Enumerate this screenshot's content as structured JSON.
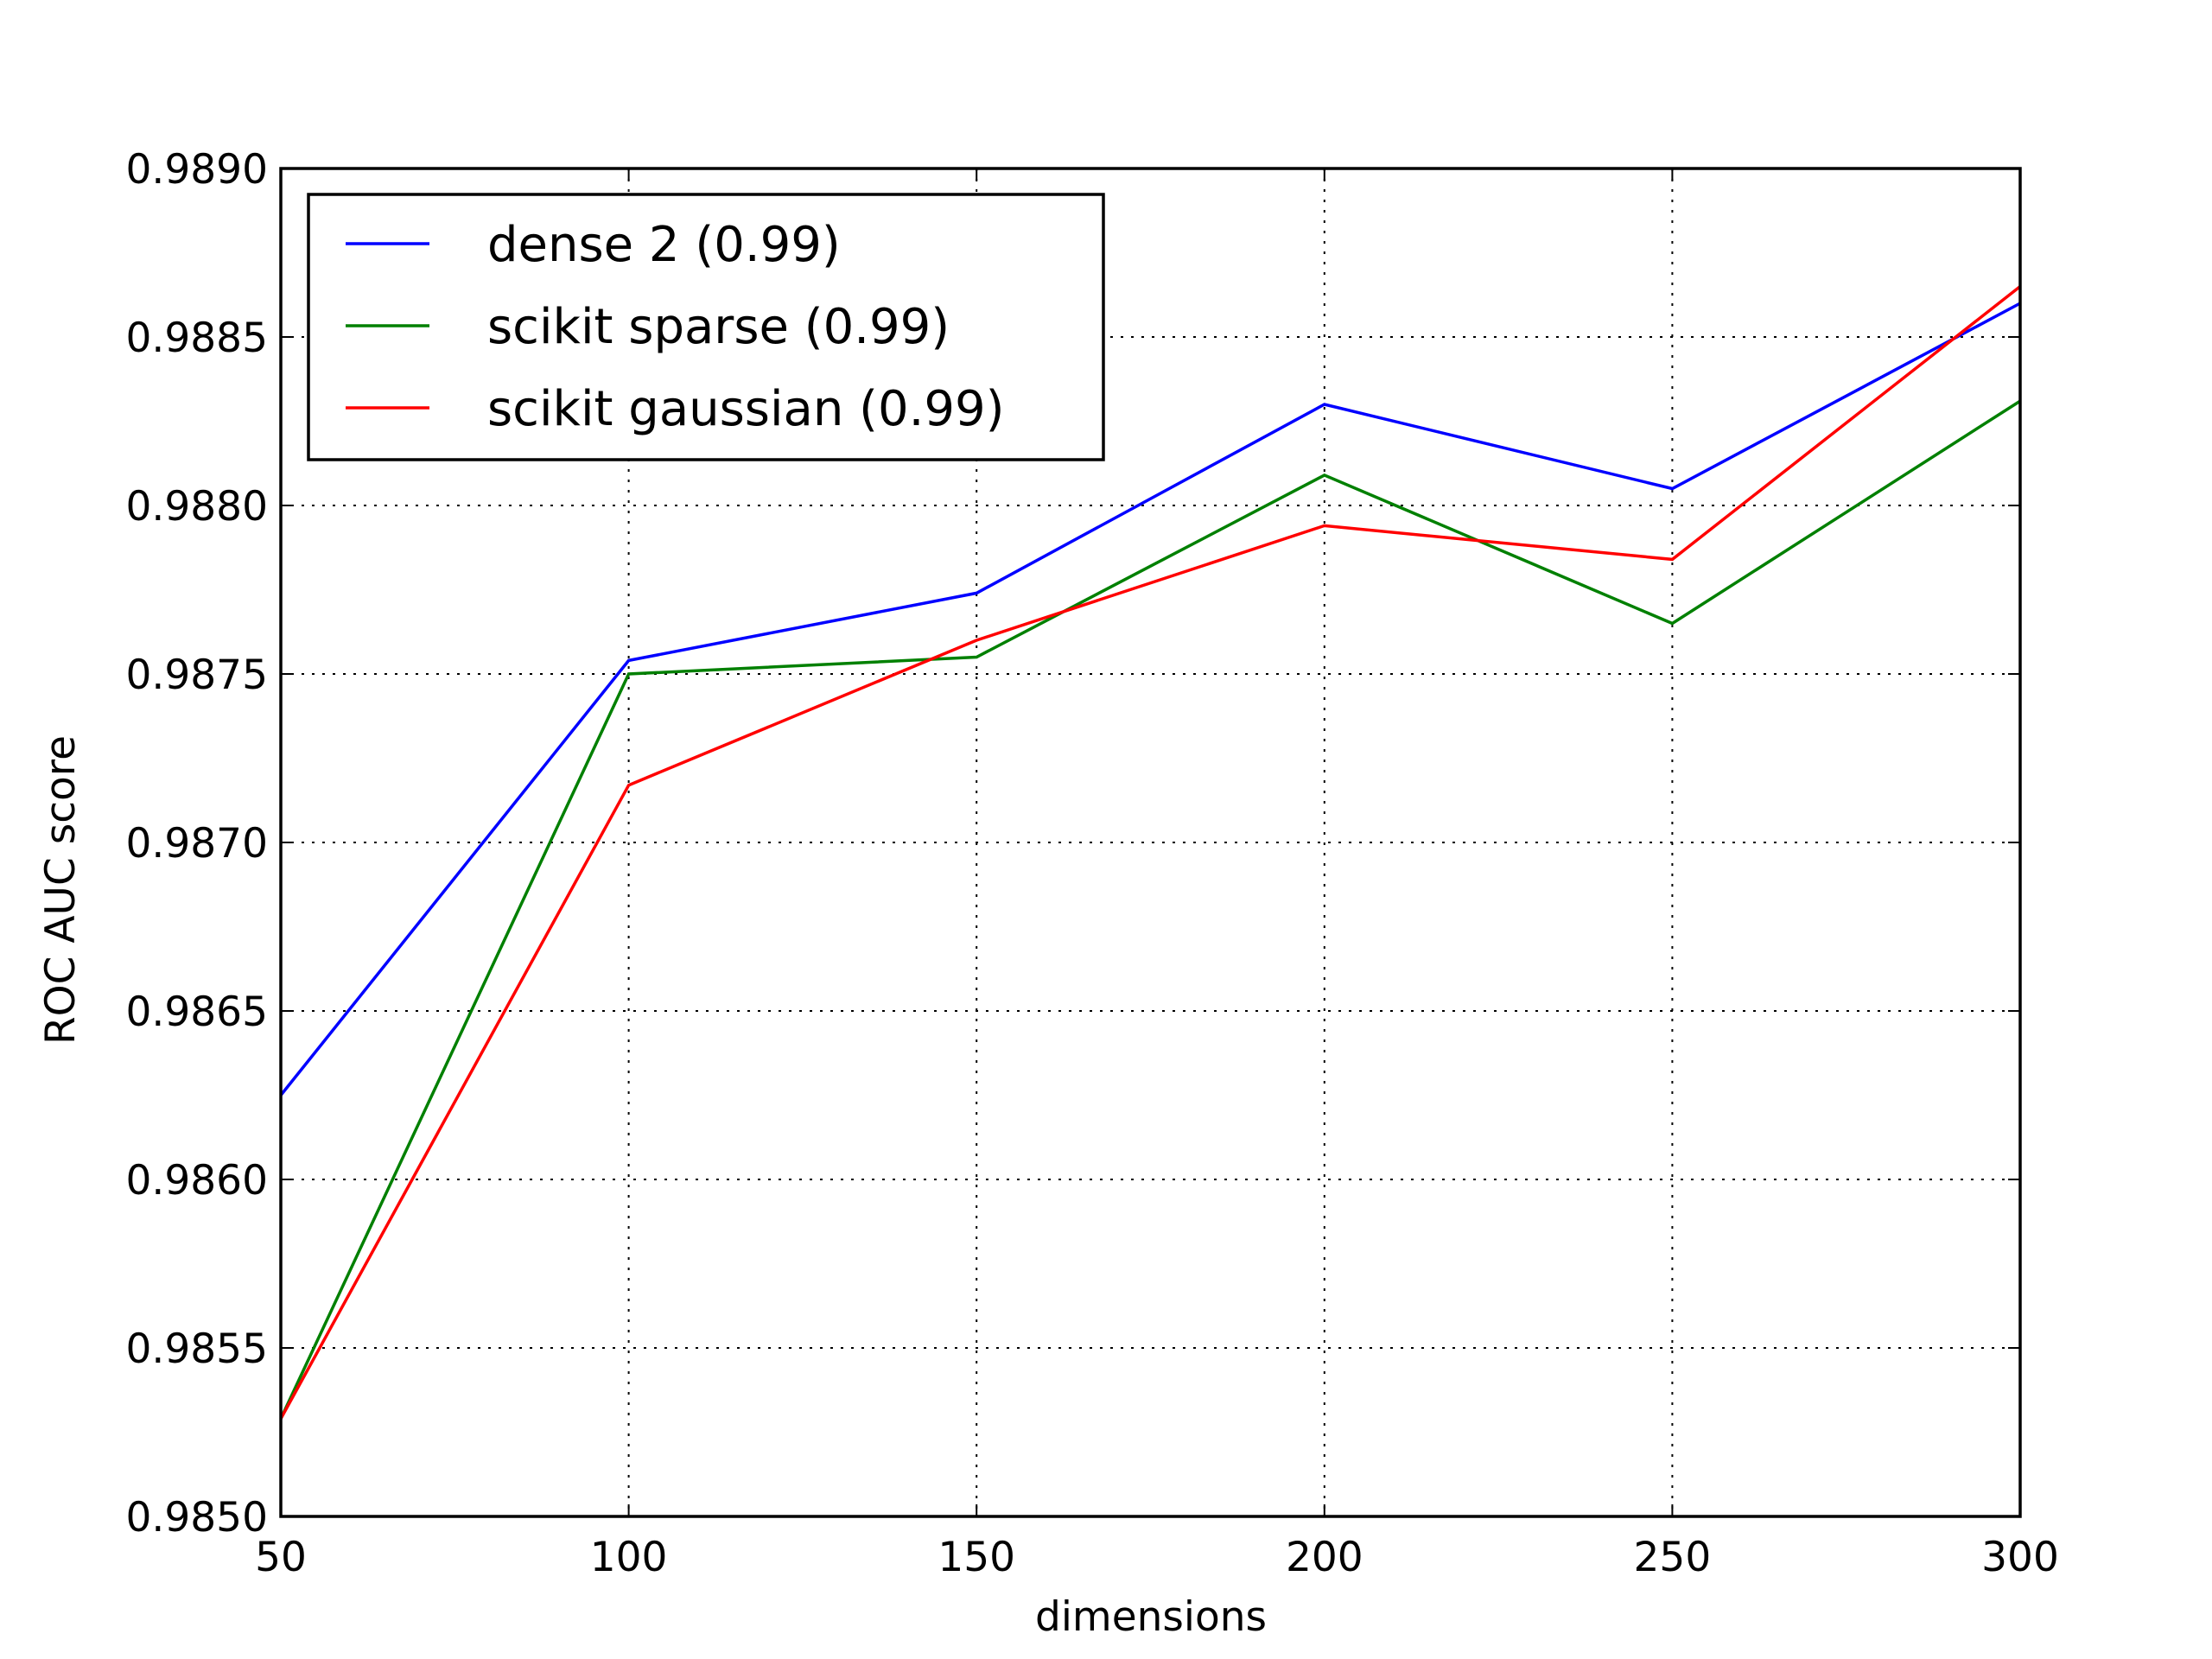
{
  "chart_data": {
    "type": "line",
    "title": "",
    "xlabel": "dimensions",
    "ylabel": "ROC AUC score",
    "x": [
      50,
      100,
      150,
      200,
      250,
      300
    ],
    "xlim": [
      50,
      300
    ],
    "ylim": [
      0.985,
      0.989
    ],
    "x_ticks": [
      "50",
      "100",
      "150",
      "200",
      "250",
      "300"
    ],
    "y_ticks": [
      "0.9850",
      "0.9855",
      "0.9860",
      "0.9865",
      "0.9870",
      "0.9875",
      "0.9880",
      "0.9885",
      "0.9890"
    ],
    "grid": true,
    "legend_position": "upper-left",
    "series": [
      {
        "name": "dense 2 (0.99)",
        "color": "#0000ff",
        "values": [
          0.98625,
          0.98754,
          0.98774,
          0.9883,
          0.98805,
          0.9886
        ]
      },
      {
        "name": "scikit sparse (0.99)",
        "color": "#008000",
        "values": [
          0.98529,
          0.9875,
          0.98755,
          0.98809,
          0.98765,
          0.98831
        ]
      },
      {
        "name": "scikit gaussian (0.99)",
        "color": "#ff0000",
        "values": [
          0.98529,
          0.98717,
          0.9876,
          0.98794,
          0.98784,
          0.98865
        ]
      }
    ]
  }
}
